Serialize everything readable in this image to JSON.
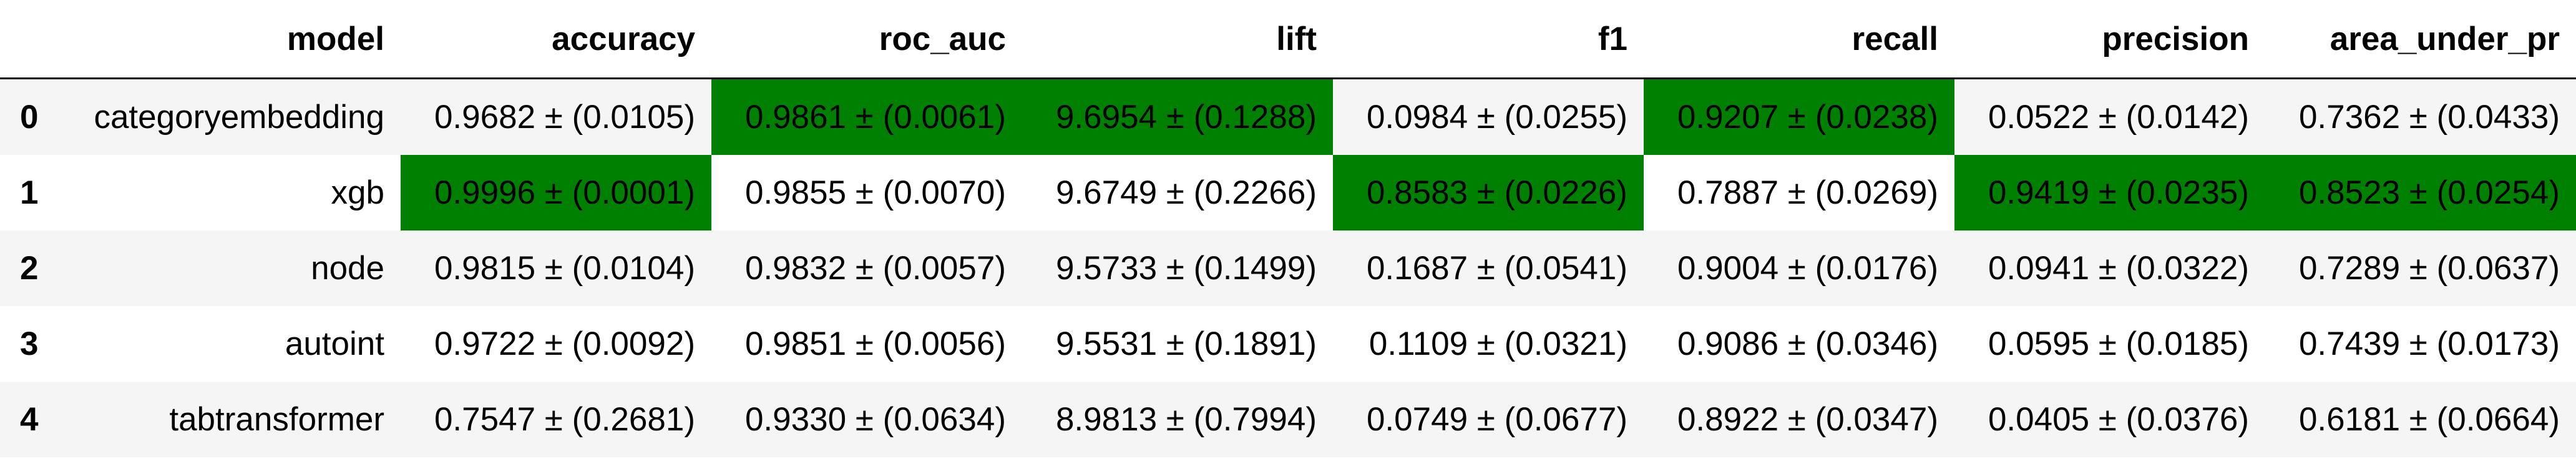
{
  "table": {
    "index_header": "",
    "columns": [
      "model",
      "accuracy",
      "roc_auc",
      "lift",
      "f1",
      "recall",
      "precision",
      "area_under_pr"
    ],
    "highlight_color": "#008000",
    "rows": [
      {
        "index": "0",
        "cells": [
          "categoryembedding",
          "0.9682 ± (0.0105)",
          "0.9861 ± (0.0061)",
          "9.6954 ± (0.1288)",
          "0.0984 ± (0.0255)",
          "0.9207 ± (0.0238)",
          "0.0522 ± (0.0142)",
          "0.7362 ± (0.0433)"
        ],
        "highlighted": [
          false,
          false,
          true,
          true,
          false,
          true,
          false,
          false
        ]
      },
      {
        "index": "1",
        "cells": [
          "xgb",
          "0.9996 ± (0.0001)",
          "0.9855 ± (0.0070)",
          "9.6749 ± (0.2266)",
          "0.8583 ± (0.0226)",
          "0.7887 ± (0.0269)",
          "0.9419 ± (0.0235)",
          "0.8523 ± (0.0254)"
        ],
        "highlighted": [
          false,
          true,
          false,
          false,
          true,
          false,
          true,
          true
        ]
      },
      {
        "index": "2",
        "cells": [
          "node",
          "0.9815 ± (0.0104)",
          "0.9832 ± (0.0057)",
          "9.5733 ± (0.1499)",
          "0.1687 ± (0.0541)",
          "0.9004 ± (0.0176)",
          "0.0941 ± (0.0322)",
          "0.7289 ± (0.0637)"
        ],
        "highlighted": [
          false,
          false,
          false,
          false,
          false,
          false,
          false,
          false
        ]
      },
      {
        "index": "3",
        "cells": [
          "autoint",
          "0.9722 ± (0.0092)",
          "0.9851 ± (0.0056)",
          "9.5531 ± (0.1891)",
          "0.1109 ± (0.0321)",
          "0.9086 ± (0.0346)",
          "0.0595 ± (0.0185)",
          "0.7439 ± (0.0173)"
        ],
        "highlighted": [
          false,
          false,
          false,
          false,
          false,
          false,
          false,
          false
        ]
      },
      {
        "index": "4",
        "cells": [
          "tabtransformer",
          "0.7547 ± (0.2681)",
          "0.9330 ± (0.0634)",
          "8.9813 ± (0.7994)",
          "0.0749 ± (0.0677)",
          "0.8922 ± (0.0347)",
          "0.0405 ± (0.0376)",
          "0.6181 ± (0.0664)"
        ],
        "highlighted": [
          false,
          false,
          false,
          false,
          false,
          false,
          false,
          false
        ]
      }
    ]
  }
}
